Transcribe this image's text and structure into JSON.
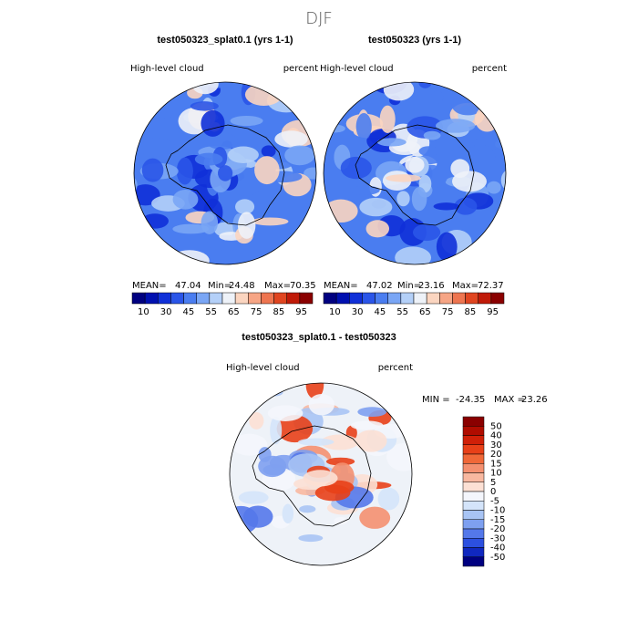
{
  "title": "DJF",
  "panels": [
    {
      "title": "test050323_splat0.1 (yrs 1-1)",
      "variable": "High-level cloud",
      "units": "percent",
      "stats": {
        "mean_label": "MEAN=",
        "mean": 47.04,
        "min_label": "Min=",
        "min": 24.48,
        "max_label": "Max=",
        "max": 70.35
      }
    },
    {
      "title": "test050323 (yrs 1-1)",
      "variable": "High-level cloud",
      "units": "percent",
      "stats": {
        "mean_label": "MEAN=",
        "mean": 47.02,
        "min_label": "Min=",
        "min": 23.16,
        "max_label": "Max=",
        "max": 72.37
      }
    }
  ],
  "colorbar": {
    "labels": [
      10,
      30,
      45,
      55,
      65,
      75,
      85,
      95
    ],
    "colors": [
      "#000080",
      "#0010b0",
      "#1030d8",
      "#2a55e8",
      "#4a7df0",
      "#7aa6f5",
      "#b4d0f8",
      "#eef2f8",
      "#fbd5c0",
      "#f6a585",
      "#ee7550",
      "#e04520",
      "#c01a08",
      "#8a0000"
    ]
  },
  "difference": {
    "title": "test050323_splat0.1 - test050323",
    "variable": "High-level cloud",
    "units": "percent",
    "min_label": "MIN =",
    "min": -24.35,
    "max_label": "MAX =",
    "max": 23.26,
    "colorbar": {
      "labels": [
        50,
        40,
        30,
        20,
        15,
        10,
        5,
        0,
        -5,
        -10,
        -15,
        -20,
        -30,
        -40,
        -50
      ],
      "colors": [
        "#8a0000",
        "#b00c00",
        "#d02008",
        "#e84018",
        "#f06838",
        "#f49070",
        "#f8b8a0",
        "#fce0d4",
        "#f4f6fc",
        "#d4e4fa",
        "#a8c4f4",
        "#7ea0f0",
        "#5478ea",
        "#2c50e0",
        "#1028c0",
        "#000080"
      ]
    }
  }
}
